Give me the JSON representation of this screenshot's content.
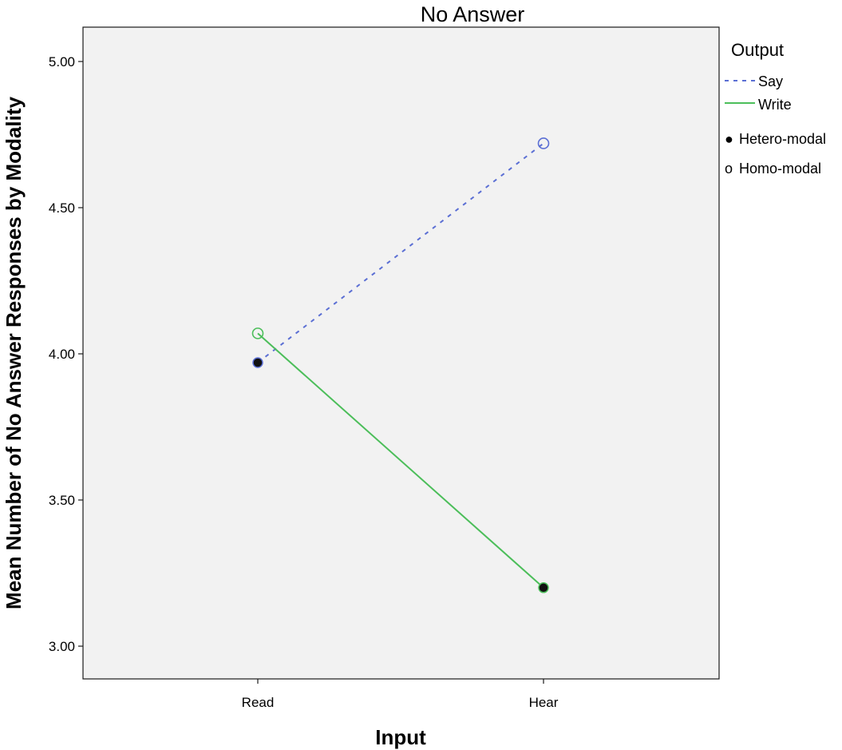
{
  "chart_data": {
    "type": "line",
    "title": "No Answer",
    "xlabel": "Input",
    "ylabel": "Mean Number of No Answer Responses by Modality",
    "categories": [
      "Read",
      "Hear"
    ],
    "ylim": [
      2.9,
      5.12
    ],
    "yticks": [
      "3.00",
      "3.50",
      "4.00",
      "4.50",
      "5.00"
    ],
    "ytick_values": [
      3.0,
      3.5,
      4.0,
      4.5,
      5.0
    ],
    "grid": false,
    "legend_position": "right",
    "series": [
      {
        "name": "Say",
        "values": [
          3.97,
          4.72
        ],
        "color": "#5b6fd4",
        "line_style": "dashed",
        "markers": [
          "filled",
          "open"
        ]
      },
      {
        "name": "Write",
        "values": [
          4.07,
          3.2
        ],
        "color": "#4cbe5a",
        "line_style": "solid",
        "markers": [
          "open",
          "filled"
        ]
      }
    ],
    "legend": {
      "title": "Output",
      "line_entries": [
        "Say",
        "Write"
      ],
      "marker_entries": [
        {
          "symbol": "●",
          "label": "Hetero-modal"
        },
        {
          "symbol": "o",
          "label": "Homo-modal"
        }
      ]
    }
  }
}
